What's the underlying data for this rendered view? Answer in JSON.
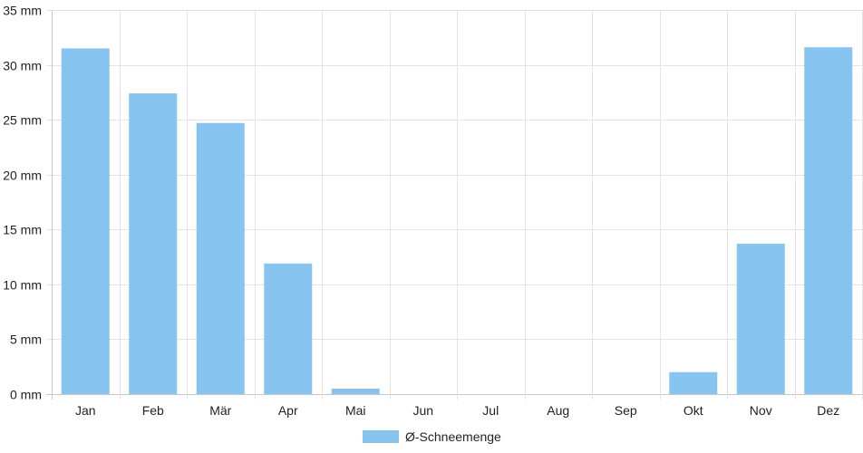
{
  "chart_data": {
    "type": "bar",
    "categories": [
      "Jan",
      "Feb",
      "Mär",
      "Apr",
      "Mai",
      "Jun",
      "Jul",
      "Aug",
      "Sep",
      "Okt",
      "Nov",
      "Dez"
    ],
    "series": [
      {
        "name": "Ø-Schneemenge",
        "color": "#88c4f0",
        "values": [
          31.5,
          27.4,
          24.7,
          11.9,
          0.5,
          0,
          0,
          0,
          0,
          2.0,
          13.7,
          31.6
        ]
      }
    ],
    "ylim": [
      0,
      35
    ],
    "yticks": [
      0,
      5,
      10,
      15,
      20,
      25,
      30,
      35
    ],
    "y_unit": "mm",
    "grid": true,
    "legend_position": "bottom-center"
  }
}
